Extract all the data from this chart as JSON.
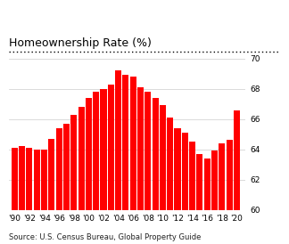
{
  "title": "Homeownership Rate (%)",
  "source": "Source: U.S. Census Bureau, Global Property Guide",
  "years": [
    1990,
    1991,
    1992,
    1993,
    1994,
    1995,
    1996,
    1997,
    1998,
    1999,
    2000,
    2001,
    2002,
    2003,
    2004,
    2005,
    2006,
    2007,
    2008,
    2009,
    2010,
    2011,
    2012,
    2013,
    2014,
    2015,
    2016,
    2017,
    2018,
    2019,
    2020
  ],
  "values": [
    64.1,
    64.2,
    64.1,
    64.0,
    64.0,
    64.7,
    65.4,
    65.7,
    66.3,
    66.8,
    67.4,
    67.8,
    68.0,
    68.3,
    69.2,
    68.9,
    68.8,
    68.1,
    67.8,
    67.4,
    66.9,
    66.1,
    65.4,
    65.1,
    64.5,
    63.7,
    63.4,
    63.9,
    64.4,
    64.6,
    66.6
  ],
  "bar_color": "#ff0000",
  "bg_color": "#ffffff",
  "ylim": [
    60,
    70
  ],
  "yticks": [
    60,
    62,
    64,
    66,
    68,
    70
  ],
  "xtick_years": [
    1990,
    1992,
    1994,
    1996,
    1998,
    2000,
    2002,
    2004,
    2006,
    2008,
    2010,
    2012,
    2014,
    2016,
    2018,
    2020
  ],
  "xtick_labels": [
    "'90",
    "'92",
    "'94",
    "'96",
    "'98",
    "'00",
    "'02",
    "'04",
    "'06",
    "'08",
    "'10",
    "'12",
    "'14",
    "'16",
    "'18",
    "'20"
  ],
  "title_fontsize": 9,
  "source_fontsize": 6.0,
  "tick_fontsize": 6.5
}
